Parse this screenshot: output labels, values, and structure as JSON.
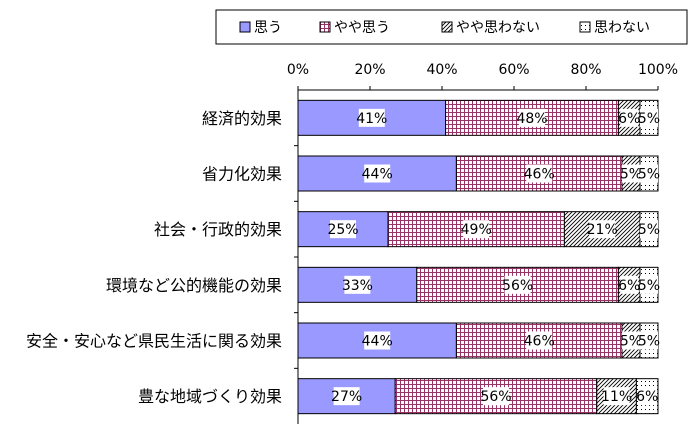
{
  "chart_data": {
    "type": "bar",
    "orientation": "horizontal",
    "stacked": "percent",
    "categories": [
      "経済的効果",
      "省力化効果",
      "社会・行政的効果",
      "環境など公的機能の効果",
      "安全・安心など県民生活に関る効果",
      "豊な地域づくり効果"
    ],
    "series": [
      {
        "name": "思う",
        "values": [
          41,
          44,
          25,
          33,
          44,
          27
        ],
        "color": "#9999ff",
        "pattern": "solid"
      },
      {
        "name": "やや思う",
        "values": [
          48,
          46,
          49,
          56,
          46,
          56
        ],
        "color": "#993366",
        "pattern": "grid"
      },
      {
        "name": "やや思わない",
        "values": [
          6,
          5,
          21,
          6,
          5,
          11
        ],
        "color": "#000000",
        "pattern": "diagonal"
      },
      {
        "name": "思わない",
        "values": [
          5,
          5,
          5,
          5,
          5,
          6
        ],
        "color": "#000000",
        "pattern": "dots"
      }
    ],
    "xlim": [
      0,
      100
    ],
    "xticks": [
      "0%",
      "20%",
      "40%",
      "60%",
      "80%",
      "100%"
    ],
    "legend_position": "top",
    "grid": false
  }
}
